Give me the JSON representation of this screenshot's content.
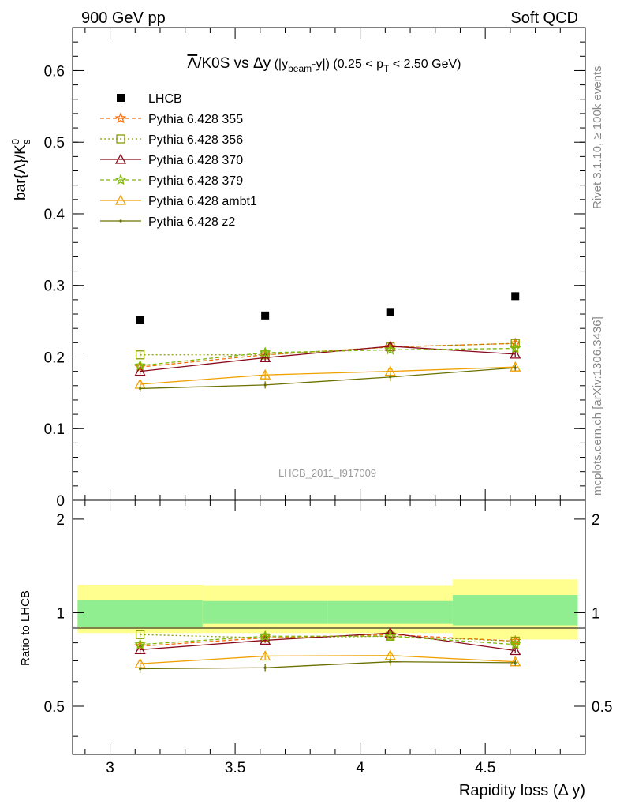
{
  "header": {
    "left": "900 GeV pp",
    "right": "Soft QCD"
  },
  "side_labels": {
    "rivet": "Rivet 3.1.10, ≥ 100k events",
    "mcplots": "mcplots.cern.ch [arXiv:1306.3436]"
  },
  "colors": {
    "band_inner": "#90ee90",
    "band_outer": "#ffff90",
    "data": "#000000"
  },
  "chart_data": [
    {
      "type": "line",
      "panel": "main",
      "title": {
        "base": "Λ/K0S vs Δy (|y",
        "sub1": "beam",
        "mid": "-y|) (0.25 < p",
        "sub2": "T",
        "tail": " < 2.50 GeV)"
      },
      "ylabel": {
        "base": "bar{Λ}/K",
        "sup": "0",
        "sub": "s"
      },
      "watermark": "LHCB_2011_I917009",
      "xlim": [
        2.85,
        4.9
      ],
      "ylim": [
        0,
        0.66
      ],
      "xticks": [
        3,
        3.5,
        4,
        4.5
      ],
      "xtick_labels": [
        "3",
        "3.5",
        "4",
        "4.5"
      ],
      "yticks": [
        0,
        0.1,
        0.2,
        0.3,
        0.4,
        0.5,
        0.6
      ],
      "ytick_labels": [
        "0",
        "0.1",
        "0.2",
        "0.3",
        "0.4",
        "0.5",
        "0.6"
      ],
      "legend_position": "top-left",
      "x": [
        3.12,
        3.62,
        4.12,
        4.62
      ],
      "data": {
        "name": "LHCB",
        "values": [
          0.252,
          0.258,
          0.263,
          0.285
        ]
      },
      "series": [
        {
          "name": "Pythia 6.428 355",
          "color": "#ff6a00",
          "dash": "5,3",
          "marker": "star",
          "values": [
            0.186,
            0.203,
            0.214,
            0.219
          ],
          "err": [
            0.004,
            0.004,
            0.004,
            0.004
          ]
        },
        {
          "name": "Pythia 6.428 356",
          "color": "#8a9a00",
          "dash": "2,3",
          "marker": "square-open",
          "values": [
            0.203,
            0.203,
            0.214,
            0.219
          ],
          "err": [
            0.004,
            0.004,
            0.004,
            0.004
          ]
        },
        {
          "name": "Pythia 6.428 370",
          "color": "#8b0a1a",
          "dash": "",
          "marker": "triangle-open",
          "values": [
            0.18,
            0.199,
            0.215,
            0.204
          ],
          "err": [
            0.004,
            0.004,
            0.004,
            0.004
          ]
        },
        {
          "name": "Pythia 6.428 379",
          "color": "#7cb800",
          "dash": "5,3",
          "marker": "star",
          "values": [
            0.188,
            0.206,
            0.21,
            0.212
          ],
          "err": [
            0.005,
            0.005,
            0.005,
            0.004
          ]
        },
        {
          "name": "Pythia 6.428 ambt1",
          "color": "#f0a000",
          "dash": "",
          "marker": "triangle-open",
          "values": [
            0.162,
            0.175,
            0.18,
            0.186
          ],
          "err": [
            0.005,
            0.005,
            0.005,
            0.004
          ]
        },
        {
          "name": "Pythia 6.428 z2",
          "color": "#6b7000",
          "dash": "",
          "marker": "dot",
          "values": [
            0.156,
            0.161,
            0.172,
            0.185
          ],
          "err": [
            0.005,
            0.005,
            0.006,
            0.004
          ]
        }
      ]
    },
    {
      "type": "line",
      "panel": "ratio",
      "ylabel": "Ratio to LHCB",
      "xlabel": "Rapidity loss (Δ y)",
      "ylim": [
        0.35,
        2.3
      ],
      "yticks": [
        0.5,
        1,
        2
      ],
      "ytick_labels": [
        "0.5",
        "1",
        "2"
      ],
      "bands": [
        {
          "x0": 2.87,
          "x1": 3.37,
          "inner": [
            0.9,
            1.1
          ],
          "outer": [
            0.86,
            1.23
          ]
        },
        {
          "x0": 3.37,
          "x1": 3.87,
          "inner": [
            0.92,
            1.09
          ],
          "outer": [
            0.86,
            1.22
          ]
        },
        {
          "x0": 3.87,
          "x1": 4.37,
          "inner": [
            0.92,
            1.09
          ],
          "outer": [
            0.86,
            1.22
          ]
        },
        {
          "x0": 4.37,
          "x1": 4.87,
          "inner": [
            0.91,
            1.14
          ],
          "outer": [
            0.82,
            1.28
          ]
        }
      ],
      "series": [
        {
          "name": "Pythia 6.428 355",
          "values": [
            0.78,
            0.83,
            0.85,
            0.81
          ],
          "err": [
            0.015,
            0.015,
            0.015,
            0.015
          ]
        },
        {
          "name": "Pythia 6.428 356",
          "values": [
            0.85,
            0.83,
            0.84,
            0.81
          ],
          "err": [
            0.015,
            0.015,
            0.015,
            0.015
          ]
        },
        {
          "name": "Pythia 6.428 370",
          "values": [
            0.76,
            0.815,
            0.86,
            0.755
          ],
          "err": [
            0.015,
            0.015,
            0.015,
            0.015
          ]
        },
        {
          "name": "Pythia 6.428 379",
          "values": [
            0.79,
            0.84,
            0.84,
            0.79
          ],
          "err": [
            0.02,
            0.02,
            0.02,
            0.02
          ]
        },
        {
          "name": "Pythia 6.428 ambt1",
          "values": [
            0.685,
            0.725,
            0.728,
            0.695
          ],
          "err": [
            0.02,
            0.02,
            0.02,
            0.015
          ]
        },
        {
          "name": "Pythia 6.428 z2",
          "values": [
            0.66,
            0.665,
            0.695,
            0.69
          ],
          "err": [
            0.02,
            0.02,
            0.02,
            0.015
          ]
        }
      ]
    }
  ]
}
